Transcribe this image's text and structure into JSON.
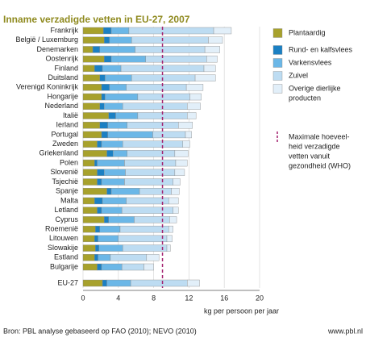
{
  "chart_data": {
    "type": "stacked-bar-horizontal",
    "title": "Inname verzadigde vetten in EU-27, 2007",
    "categories": [
      "Frankrijk",
      "België / Luxemburg",
      "Denemarken",
      "Oostenrijk",
      "Finland",
      "Duitsland",
      "Verenigd Koninkrijk",
      "Hongarije",
      "Nederland",
      "Italië",
      "Ierland",
      "Portugal",
      "Zweden",
      "Griekenland",
      "Polen",
      "Slovenië",
      "Tsjechië",
      "Spanje",
      "Malta",
      "Letland",
      "Cyprus",
      "Roemenië",
      "Litouwen",
      "Slowakije",
      "Estland",
      "Bulgarije",
      "EU-27"
    ],
    "series": [
      {
        "name": "Plantaardig",
        "color": "#a7a12c",
        "values": [
          2.3,
          2.4,
          1.1,
          2.4,
          1.3,
          1.9,
          2.1,
          2.1,
          1.9,
          2.9,
          1.9,
          2.1,
          1.6,
          2.7,
          1.3,
          1.6,
          1.6,
          2.7,
          1.3,
          1.6,
          2.4,
          1.4,
          1.3,
          1.4,
          1.3,
          1.6,
          2.2
        ]
      },
      {
        "name": "Rund- en kalfsvlees",
        "color": "#1b80c3",
        "values": [
          0.9,
          0.6,
          0.8,
          0.8,
          0.9,
          0.6,
          0.9,
          0.4,
          0.5,
          0.8,
          0.9,
          0.7,
          0.5,
          0.7,
          0.3,
          0.8,
          0.5,
          0.5,
          0.9,
          0.5,
          0.5,
          0.5,
          0.4,
          0.4,
          0.4,
          0.5,
          0.5
        ]
      },
      {
        "name": "Varkensvlees",
        "color": "#6bb7e7",
        "values": [
          2.0,
          2.5,
          4.0,
          3.9,
          2.1,
          3.0,
          1.9,
          3.7,
          2.1,
          2.5,
          2.2,
          5.1,
          2.4,
          1.6,
          3.1,
          2.4,
          2.6,
          3.2,
          2.7,
          2.3,
          2.9,
          2.3,
          2.3,
          2.7,
          1.4,
          2.3,
          2.7
        ]
      },
      {
        "name": "Zuivel",
        "color": "#bddcf2",
        "values": [
          9.6,
          8.7,
          7.9,
          6.9,
          9.4,
          7.2,
          6.8,
          5.9,
          7.3,
          5.6,
          5.8,
          3.7,
          6.8,
          5.4,
          5.8,
          5.6,
          5.5,
          3.6,
          4.8,
          5.8,
          4.0,
          5.5,
          5.5,
          5.0,
          4.1,
          2.5,
          6.4
        ]
      },
      {
        "name": "Overige dierlijke producten",
        "color": "#e2eff9",
        "values": [
          2.0,
          1.6,
          1.7,
          1.2,
          1.3,
          2.3,
          1.9,
          1.3,
          1.5,
          1.0,
          1.6,
          0.7,
          0.8,
          1.5,
          1.3,
          1.1,
          0.8,
          0.9,
          1.1,
          0.6,
          0.8,
          0.5,
          0.6,
          0.4,
          1.4,
          1.1,
          1.4
        ]
      }
    ],
    "legend_lines": [
      [
        "Plantaardig"
      ],
      [
        "Rund- en kalfsvlees"
      ],
      [
        "Varkensvlees"
      ],
      [
        "Zuivel"
      ],
      [
        "Overige dierlijke",
        "producten"
      ]
    ],
    "reference_line": {
      "value": 9,
      "color": "#a3206f",
      "label": [
        "Maximale hoeveel-",
        "heid verzadigde",
        "vetten vanuit",
        "gezondheid (WHO)"
      ]
    },
    "xlim": [
      0,
      20
    ],
    "xticks": [
      0,
      4,
      8,
      12,
      16,
      20
    ],
    "grid": true,
    "xlabel": "kg per persoon per jaar",
    "source": "Bron: PBL analyse gebaseerd op FAO (2010); NEVO (2010)",
    "website": "www.pbl.nl"
  }
}
